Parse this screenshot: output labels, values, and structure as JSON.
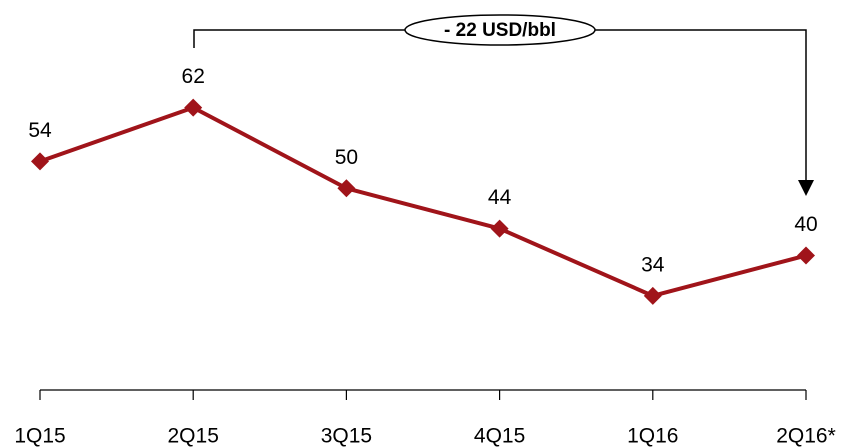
{
  "chart_data": {
    "type": "line",
    "categories": [
      "1Q15",
      "2Q15",
      "3Q15",
      "4Q15",
      "1Q16",
      "2Q16*"
    ],
    "series": [
      {
        "name": null,
        "color": "#a0141a",
        "values": [
          54,
          62,
          50,
          44,
          34,
          40
        ]
      }
    ],
    "ylim": [
      20,
      78
    ],
    "annotation": "- 22 USD/bbl"
  }
}
